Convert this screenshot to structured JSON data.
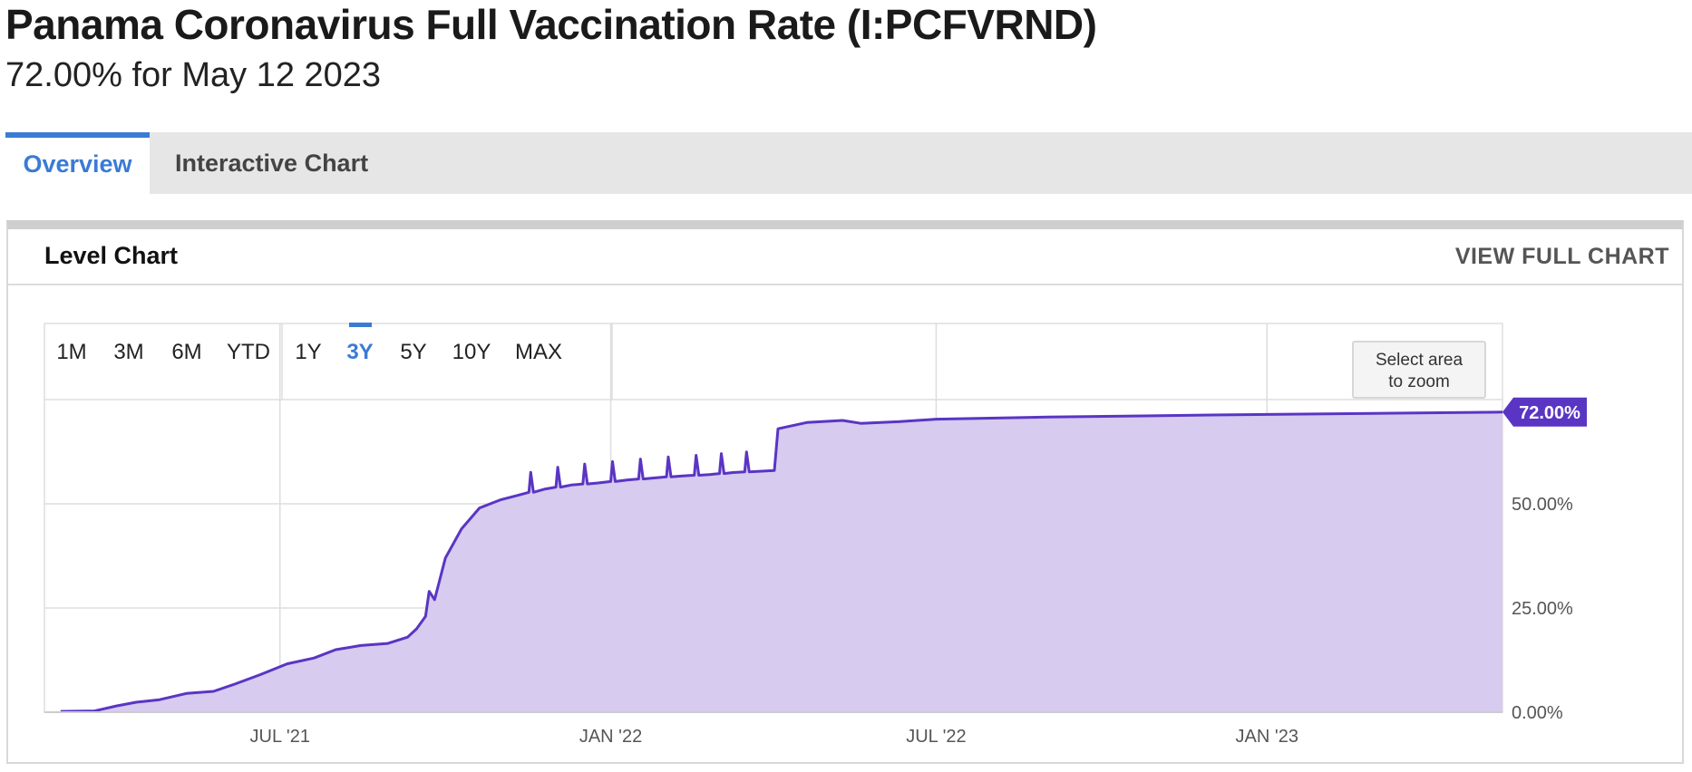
{
  "page": {
    "title": "Panama Coronavirus Full Vaccination Rate (I:PCFVRND)",
    "subtitle": "72.00% for May 12 2023"
  },
  "tabs": [
    {
      "label": "Overview",
      "active": true
    },
    {
      "label": "Interactive Chart",
      "active": false
    }
  ],
  "card": {
    "title": "Level Chart",
    "view_full_label": "VIEW FULL CHART"
  },
  "range_buttons": [
    "1M",
    "3M",
    "6M",
    "YTD",
    "1Y",
    "3Y",
    "5Y",
    "10Y",
    "MAX"
  ],
  "active_range": "3Y",
  "zoom_button": {
    "line1": "Select area",
    "line2": "to zoom"
  },
  "colors": {
    "line": "#5a35c4",
    "fill": "#d7cbef",
    "accent": "#3a7bd5",
    "last_label_bg": "#5a35c4"
  },
  "chart_data": {
    "type": "area",
    "title": "",
    "xlabel": "",
    "ylabel": "",
    "ylim": [
      0,
      75
    ],
    "x_tick_labels": [
      {
        "date": "2021-07-01",
        "label": "JUL '21"
      },
      {
        "date": "2022-01-01",
        "label": "JAN '22"
      },
      {
        "date": "2022-07-01",
        "label": "JUL '22"
      },
      {
        "date": "2023-01-01",
        "label": "JAN '23"
      }
    ],
    "y_tick_labels": [
      {
        "value": 0,
        "label": "0.00%"
      },
      {
        "value": 25,
        "label": "25.00%"
      },
      {
        "value": 50,
        "label": "50.00%"
      }
    ],
    "last_value_label": "72.00%",
    "grid": true,
    "series": [
      {
        "values": [
          [
            "2021-03-01",
            0.2
          ],
          [
            "2021-03-20",
            0.3
          ],
          [
            "2021-04-01",
            1.5
          ],
          [
            "2021-04-12",
            2.4
          ],
          [
            "2021-04-25",
            3.0
          ],
          [
            "2021-05-10",
            4.5
          ],
          [
            "2021-05-25",
            5.0
          ],
          [
            "2021-06-05",
            6.6
          ],
          [
            "2021-06-20",
            9.0
          ],
          [
            "2021-07-05",
            11.6
          ],
          [
            "2021-07-20",
            13.0
          ],
          [
            "2021-08-01",
            15.0
          ],
          [
            "2021-08-15",
            16.0
          ],
          [
            "2021-08-30",
            16.5
          ],
          [
            "2021-09-10",
            18.0
          ],
          [
            "2021-09-15",
            20.0
          ],
          [
            "2021-09-20",
            23.0
          ],
          [
            "2021-09-22",
            29.0
          ],
          [
            "2021-09-25",
            27.0
          ],
          [
            "2021-10-01",
            37.0
          ],
          [
            "2021-10-10",
            44.0
          ],
          [
            "2021-10-20",
            49.0
          ],
          [
            "2021-11-01",
            51.0
          ],
          [
            "2021-11-10",
            52.0
          ],
          [
            "2021-11-25",
            53.5
          ],
          [
            "2021-12-10",
            54.5
          ],
          [
            "2021-12-25",
            55.0
          ],
          [
            "2022-01-10",
            55.7
          ],
          [
            "2022-01-25",
            56.2
          ],
          [
            "2022-02-10",
            56.7
          ],
          [
            "2022-02-25",
            57.0
          ],
          [
            "2022-03-10",
            57.5
          ],
          [
            "2022-03-25",
            57.8
          ],
          [
            "2022-04-02",
            58.0
          ],
          [
            "2022-04-04",
            68.0
          ],
          [
            "2022-04-20",
            69.5
          ],
          [
            "2022-05-10",
            70.0
          ],
          [
            "2022-05-20",
            69.3
          ],
          [
            "2022-06-10",
            69.7
          ],
          [
            "2022-07-01",
            70.3
          ],
          [
            "2022-09-01",
            70.8
          ],
          [
            "2022-12-01",
            71.3
          ],
          [
            "2023-03-01",
            71.7
          ],
          [
            "2023-05-12",
            72.0
          ]
        ]
      }
    ]
  }
}
